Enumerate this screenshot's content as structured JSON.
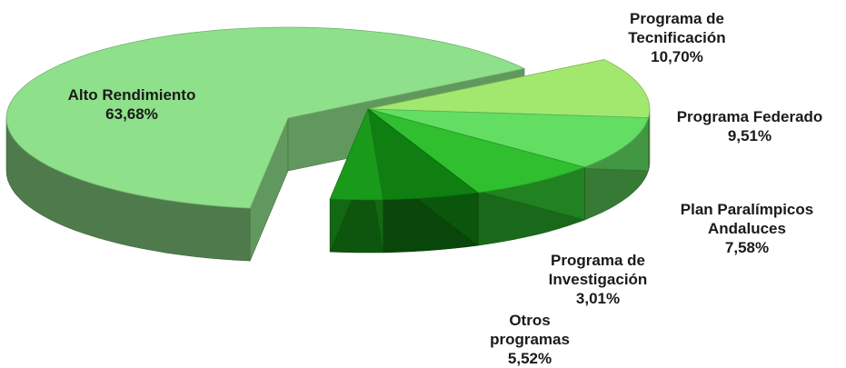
{
  "chart_data": {
    "type": "pie",
    "style": "3d-exploded",
    "title": "",
    "slices": [
      {
        "name": "Alto Rendimiento",
        "value": 63.68,
        "display": "63,68%",
        "color": "#8fe08a",
        "exploded": true
      },
      {
        "name": "Programa de Tecnificación",
        "value": 10.7,
        "display": "10,70%",
        "color": "#a2e86f"
      },
      {
        "name": "Programa Federado",
        "value": 9.51,
        "display": "9,51%",
        "color": "#63de63"
      },
      {
        "name": "Plan Paralímpicos Andaluces",
        "value": 7.58,
        "display": "7,58%",
        "color": "#2fbf2f"
      },
      {
        "name": "Programa de Investigación",
        "value": 3.01,
        "display": "3,01%",
        "color": "#1a9a1a"
      },
      {
        "name": "Otros programas",
        "value": 5.52,
        "display": "5,52%",
        "color": "#0f7f12"
      }
    ]
  },
  "labels": {
    "alto": {
      "line1": "Alto Rendimiento",
      "line2": "63,68%"
    },
    "tecnificacion": {
      "line1": "Programa de",
      "line2": "Tecnificación",
      "line3": "10,70%"
    },
    "federado": {
      "line1": "Programa Federado",
      "line2": "9,51%"
    },
    "paralimpicos": {
      "line1": "Plan Paralímpicos",
      "line2": "Andaluces",
      "line3": "7,58%"
    },
    "investigacion": {
      "line1": "Programa de",
      "line2": "Investigación",
      "line3": "3,01%"
    },
    "otros": {
      "line1": "Otros",
      "line2": "programas",
      "line3": "5,52%"
    }
  }
}
